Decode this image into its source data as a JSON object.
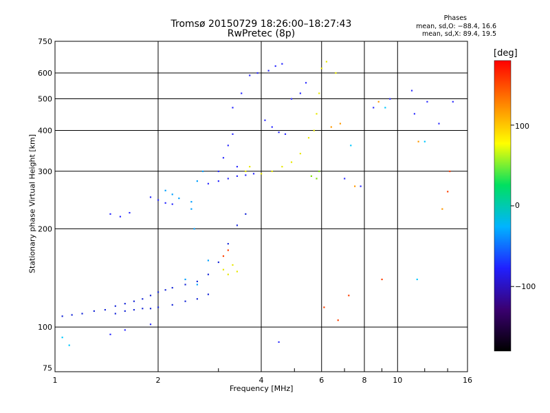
{
  "header": {
    "title": "Tromsø 20150729 18:26:00–18:27:43",
    "subtitle": "RwPretec (8p)",
    "stats_heading": "Phases",
    "stats_o": "mean, sd,O: −88.4, 16.6",
    "stats_x": "mean, sd,X:  89.4, 19.5"
  },
  "colorbar": {
    "title": "[deg]",
    "labels": [
      "100",
      "0",
      "−100"
    ],
    "range": [
      -180,
      180
    ],
    "colors": [
      "#000000",
      "#3a0070",
      "#2020ff",
      "#00b4ff",
      "#00e060",
      "#ffff00",
      "#ff8000",
      "#ff0000"
    ]
  },
  "chart_data": {
    "type": "scatter",
    "xlabel": "Frequency [MHz]",
    "ylabel": "Stationary phase Virtual Height [km]",
    "x_scale": "log",
    "y_scale": "log",
    "xlim": [
      1,
      16
    ],
    "ylim": [
      73,
      750
    ],
    "grid": true,
    "x_ticks": [
      1,
      2,
      4,
      6,
      8,
      10,
      16
    ],
    "x_tick_labels": [
      "1",
      "2",
      "4",
      "6",
      "8",
      "10",
      "16"
    ],
    "y_ticks": [
      75,
      100,
      200,
      300,
      400,
      500,
      600,
      750
    ],
    "y_tick_labels": [
      "75",
      "100",
      "200",
      "300",
      "400",
      "500",
      "600",
      "750"
    ],
    "series": [
      {
        "color": "#1a2bd8",
        "points": [
          [
            1.05,
            108
          ],
          [
            1.12,
            109
          ],
          [
            1.2,
            110
          ],
          [
            1.3,
            112
          ],
          [
            1.4,
            113
          ],
          [
            1.5,
            116
          ],
          [
            1.6,
            118
          ],
          [
            1.7,
            120
          ],
          [
            1.8,
            122
          ],
          [
            1.9,
            125
          ],
          [
            2.0,
            128
          ],
          [
            2.1,
            130
          ],
          [
            2.2,
            132
          ],
          [
            2.4,
            135
          ],
          [
            2.6,
            138
          ],
          [
            2.8,
            145
          ],
          [
            3.0,
            158
          ],
          [
            3.2,
            180
          ],
          [
            3.4,
            205
          ],
          [
            3.6,
            222
          ],
          [
            1.5,
            110
          ],
          [
            1.6,
            112
          ],
          [
            1.7,
            113
          ],
          [
            1.8,
            114
          ],
          [
            1.9,
            114
          ],
          [
            2.0,
            115
          ],
          [
            2.2,
            117
          ],
          [
            2.4,
            120
          ],
          [
            2.6,
            122
          ],
          [
            2.8,
            126
          ]
        ]
      },
      {
        "color": "#2b2bff",
        "points": [
          [
            1.9,
            250
          ],
          [
            2.0,
            245
          ],
          [
            2.1,
            240
          ],
          [
            2.2,
            238
          ],
          [
            1.45,
            222
          ],
          [
            1.55,
            218
          ],
          [
            1.65,
            224
          ],
          [
            2.8,
            275
          ],
          [
            3.0,
            280
          ],
          [
            3.2,
            285
          ],
          [
            3.4,
            290
          ],
          [
            3.6,
            292
          ],
          [
            3.8,
            295
          ],
          [
            3.1,
            330
          ],
          [
            3.2,
            360
          ],
          [
            3.3,
            390
          ],
          [
            3.0,
            300
          ],
          [
            3.4,
            310
          ],
          [
            3.3,
            470
          ],
          [
            3.5,
            520
          ],
          [
            3.7,
            590
          ],
          [
            3.9,
            600
          ],
          [
            4.2,
            610
          ],
          [
            4.4,
            630
          ],
          [
            4.6,
            640
          ],
          [
            4.1,
            430
          ],
          [
            4.3,
            410
          ],
          [
            4.5,
            395
          ],
          [
            4.7,
            390
          ],
          [
            4.9,
            500
          ],
          [
            5.2,
            520
          ],
          [
            5.4,
            560
          ]
        ]
      },
      {
        "color": "#00a0ff",
        "points": [
          [
            2.1,
            262
          ],
          [
            2.2,
            255
          ],
          [
            2.3,
            248
          ],
          [
            2.5,
            242
          ],
          [
            2.6,
            280
          ],
          [
            2.7,
            300
          ],
          [
            2.4,
            140
          ],
          [
            2.6,
            135
          ],
          [
            2.8,
            160
          ],
          [
            2.5,
            230
          ],
          [
            2.55,
            200
          ]
        ]
      },
      {
        "color": "#e8e800",
        "points": [
          [
            3.1,
            150
          ],
          [
            3.2,
            145
          ],
          [
            3.3,
            155
          ],
          [
            3.4,
            148
          ],
          [
            3.6,
            300
          ],
          [
            3.7,
            310
          ],
          [
            4.0,
            295
          ],
          [
            4.3,
            300
          ],
          [
            4.6,
            310
          ],
          [
            4.9,
            320
          ],
          [
            5.2,
            340
          ],
          [
            5.5,
            380
          ],
          [
            5.7,
            400
          ],
          [
            5.8,
            450
          ],
          [
            5.9,
            520
          ],
          [
            6.0,
            620
          ],
          [
            6.2,
            650
          ],
          [
            6.6,
            600
          ]
        ]
      },
      {
        "color": "#7fe000",
        "points": [
          [
            5.6,
            290
          ],
          [
            5.8,
            285
          ],
          [
            5.9,
            300
          ]
        ]
      },
      {
        "color": "#ff4000",
        "points": [
          [
            3.1,
            165
          ],
          [
            3.2,
            172
          ],
          [
            6.1,
            115
          ],
          [
            6.7,
            105
          ],
          [
            7.2,
            125
          ],
          [
            14.0,
            260
          ],
          [
            14.2,
            300
          ],
          [
            9.0,
            140
          ]
        ]
      },
      {
        "color": "#ff9900",
        "points": [
          [
            6.4,
            410
          ],
          [
            6.8,
            420
          ],
          [
            7.5,
            270
          ],
          [
            8.8,
            490
          ],
          [
            13.5,
            230
          ],
          [
            11.5,
            370
          ]
        ]
      },
      {
        "color": "#3030ff",
        "points": [
          [
            1.45,
            95
          ],
          [
            1.6,
            98
          ],
          [
            1.9,
            102
          ],
          [
            4.5,
            90
          ],
          [
            7.0,
            285
          ],
          [
            7.8,
            270
          ],
          [
            8.5,
            470
          ],
          [
            9.5,
            500
          ],
          [
            11.0,
            530
          ],
          [
            12.2,
            490
          ],
          [
            13.2,
            420
          ],
          [
            14.5,
            490
          ],
          [
            11.2,
            450
          ]
        ]
      },
      {
        "color": "#00c8ff",
        "points": [
          [
            1.05,
            93
          ],
          [
            1.1,
            88
          ],
          [
            7.3,
            360
          ],
          [
            9.2,
            470
          ],
          [
            11.4,
            140
          ],
          [
            12.0,
            370
          ]
        ]
      }
    ]
  }
}
